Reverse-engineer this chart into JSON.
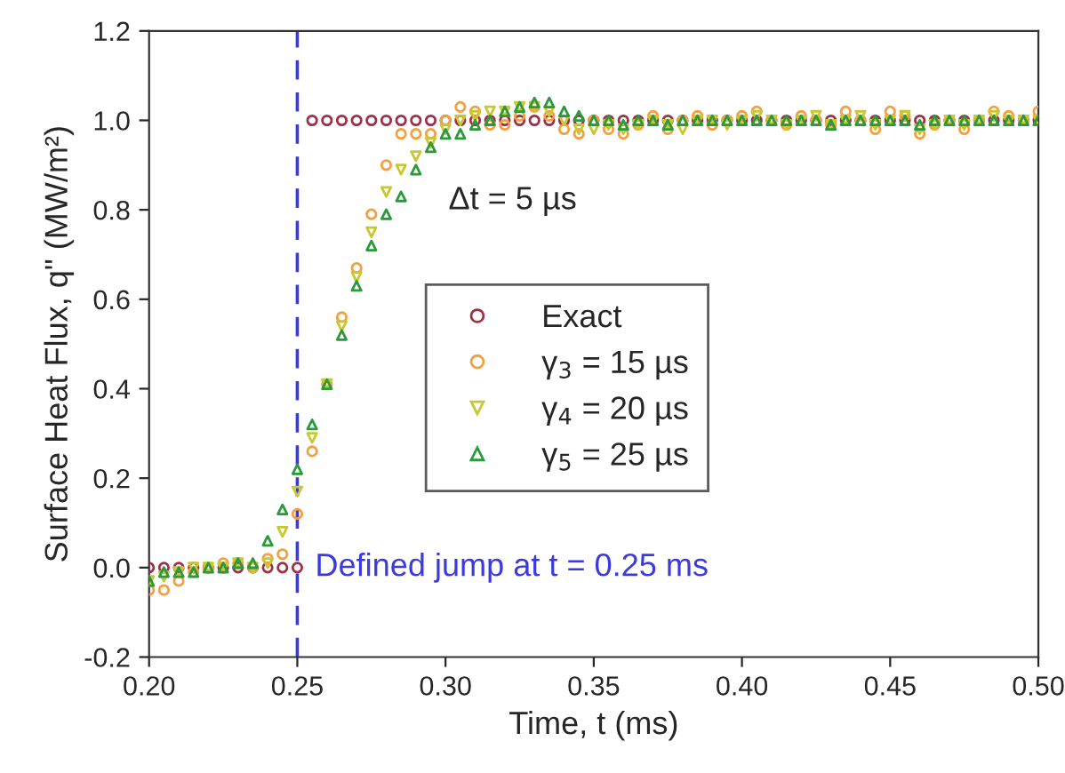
{
  "chart_data": {
    "type": "scatter",
    "xlabel": "Time, t (ms)",
    "ylabel": "Surface Heat Flux, q\" (MW/m²)",
    "x": [
      0.2,
      0.205,
      0.21,
      0.215,
      0.22,
      0.225,
      0.23,
      0.235,
      0.24,
      0.245,
      0.25,
      0.255,
      0.26,
      0.265,
      0.27,
      0.275,
      0.28,
      0.285,
      0.29,
      0.295,
      0.3,
      0.305,
      0.31,
      0.315,
      0.32,
      0.325,
      0.33,
      0.335,
      0.34,
      0.345,
      0.35,
      0.355,
      0.36,
      0.365,
      0.37,
      0.375,
      0.38,
      0.385,
      0.39,
      0.395,
      0.4,
      0.405,
      0.41,
      0.415,
      0.42,
      0.425,
      0.43,
      0.435,
      0.44,
      0.445,
      0.45,
      0.455,
      0.46,
      0.465,
      0.47,
      0.475,
      0.48,
      0.485,
      0.49,
      0.495,
      0.5
    ],
    "series": [
      {
        "name": "Exact",
        "color": "#a0304a",
        "marker": "circle",
        "values": [
          0,
          0,
          0,
          0,
          0,
          0,
          0,
          0,
          0,
          0,
          0,
          1,
          1,
          1,
          1,
          1,
          1,
          1,
          1,
          1,
          1,
          1,
          1,
          1,
          1,
          1,
          1,
          1,
          1,
          1,
          1,
          1,
          1,
          1,
          1,
          1,
          1,
          1,
          1,
          1,
          1,
          1,
          1,
          1,
          1,
          1,
          1,
          1,
          1,
          1,
          1,
          1,
          1,
          1,
          1,
          1,
          1,
          1,
          1,
          1,
          1
        ]
      },
      {
        "name": "γ$_{3}$ = 15 µs",
        "color": "#f5a040",
        "marker": "circle",
        "values": [
          -0.05,
          -0.05,
          -0.03,
          -0.01,
          0.0,
          0.01,
          0.01,
          0.0,
          0.02,
          0.03,
          0.12,
          0.26,
          0.41,
          0.56,
          0.67,
          0.79,
          0.9,
          0.97,
          0.97,
          0.97,
          1.0,
          1.03,
          1.02,
          0.99,
          0.99,
          1.01,
          1.03,
          1.01,
          0.98,
          0.97,
          1.0,
          0.98,
          0.97,
          0.99,
          1.01,
          0.98,
          1.0,
          1.01,
          0.99,
          1.0,
          1.01,
          1.02,
          1.0,
          0.99,
          1.01,
          1.0,
          0.99,
          1.02,
          1.0,
          0.98,
          1.02,
          1.01,
          0.97,
          0.99,
          1.0,
          0.98,
          1.0,
          1.02,
          1.01,
          1.0,
          1.02
        ]
      },
      {
        "name": "γ$_{4}$ = 20 µs",
        "color": "#c8c830",
        "marker": "triangle_down",
        "values": [
          -0.03,
          -0.02,
          -0.01,
          0.0,
          0.0,
          0.0,
          0.01,
          0.0,
          0.01,
          0.08,
          0.17,
          0.29,
          0.41,
          0.54,
          0.65,
          0.75,
          0.84,
          0.89,
          0.92,
          0.95,
          0.98,
          1.0,
          1.01,
          1.02,
          1.02,
          1.03,
          1.03,
          1.02,
          1.0,
          0.98,
          0.98,
          0.99,
          0.98,
          0.99,
          1.0,
          0.99,
          0.98,
          1.0,
          1.0,
          0.99,
          1.0,
          1.01,
          1.0,
          0.99,
          1.0,
          1.01,
          0.99,
          1.0,
          1.01,
          0.99,
          1.0,
          1.01,
          0.98,
          0.99,
          1.0,
          0.99,
          1.0,
          1.01,
          1.0,
          1.0,
          1.0
        ]
      },
      {
        "name": "γ$_{5}$ = 25 µs",
        "color": "#2a9a3a",
        "marker": "triangle",
        "values": [
          -0.03,
          -0.01,
          -0.01,
          -0.01,
          0.0,
          0.0,
          0.01,
          0.01,
          0.06,
          0.13,
          0.22,
          0.32,
          0.41,
          0.52,
          0.63,
          0.72,
          0.79,
          0.83,
          0.89,
          0.94,
          0.97,
          0.97,
          0.99,
          1.0,
          1.02,
          1.03,
          1.04,
          1.04,
          1.02,
          1.01,
          1.0,
          1.0,
          0.99,
          1.0,
          1.0,
          0.99,
          1.0,
          1.0,
          1.0,
          1.0,
          1.0,
          1.0,
          1.0,
          1.0,
          1.0,
          1.0,
          0.99,
          1.0,
          1.0,
          1.0,
          1.0,
          1.0,
          0.99,
          1.0,
          1.0,
          1.0,
          1.0,
          1.0,
          1.0,
          1.0,
          1.0
        ]
      }
    ],
    "xlim": [
      0.2,
      0.5
    ],
    "xticks": [
      {
        "value": 0.2,
        "label": "0.20"
      },
      0.25,
      {
        "value": 0.3,
        "label": "0.30"
      },
      0.35,
      {
        "value": 0.4,
        "label": "0.40"
      },
      0.45,
      {
        "value": 0.5,
        "label": "0.50"
      }
    ],
    "ylim": [
      -0.2,
      1.2
    ],
    "yticks": [
      -0.2,
      {
        "value": 0,
        "label": "0.0"
      },
      0.2,
      0.4,
      0.6,
      0.8,
      {
        "value": 1,
        "label": "1.0"
      },
      1.2
    ],
    "ref_lines": [
      {
        "axis": "x",
        "value": 0.25,
        "label": "Defined jump at t = 0.25 ms",
        "color": "#3a3ae0",
        "line_style": "dashed"
      }
    ],
    "annotations": [
      "Δt = 5 µs"
    ],
    "legend": "center",
    "grid": false
  }
}
